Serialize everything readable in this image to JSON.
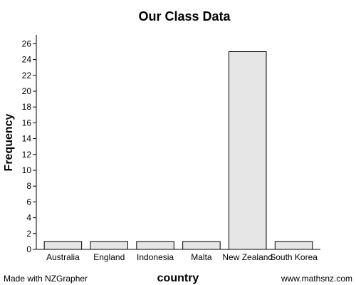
{
  "chart_data": {
    "type": "bar",
    "title": "Our Class Data",
    "xlabel": "country",
    "ylabel": "Frequency",
    "categories": [
      "Australia",
      "England",
      "Indonesia",
      "Malta",
      "New Zealand",
      "South Korea"
    ],
    "values": [
      1,
      1,
      1,
      1,
      25,
      1
    ],
    "ylim": [
      0,
      27
    ],
    "yticks": [
      0,
      2,
      4,
      6,
      8,
      10,
      12,
      14,
      16,
      18,
      20,
      22,
      24,
      26
    ],
    "grid": false,
    "bar_color": "#e6e6e6"
  },
  "footer": {
    "left": "Made with NZGrapher",
    "right": "www.mathsnz.com"
  }
}
